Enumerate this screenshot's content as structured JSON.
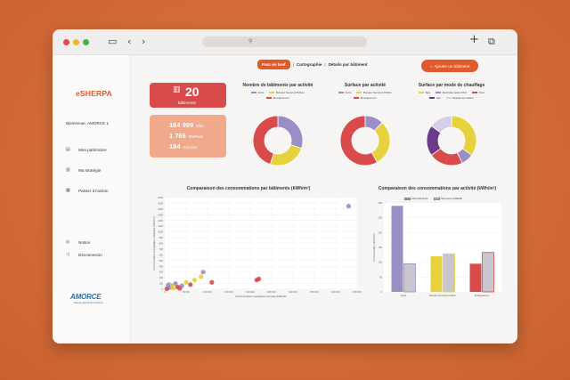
{
  "colors": {
    "accent": "#e05a2c",
    "red": "#d94a4a",
    "purple": "#9b8ec4",
    "yellow": "#e6d23c",
    "darkpurple": "#6b3a8a",
    "bar_grey": "#c9c6cf"
  },
  "sidebar": {
    "logo": "eSHERPA",
    "welcome": "Bienvenue, AMORCE 1",
    "items": [
      {
        "label": "Mon patrimoine",
        "icon": "list-icon"
      },
      {
        "label": "Ma stratégie",
        "icon": "document-icon"
      },
      {
        "label": "Passer à l'action",
        "icon": "calendar-icon"
      }
    ],
    "footer": [
      {
        "label": "Notice",
        "icon": "globe-icon"
      },
      {
        "label": "Déconnexion",
        "icon": "logout-icon"
      }
    ],
    "brand": "AMORCE",
    "brand_sub": "Réseau national des territoires"
  },
  "tabs": [
    {
      "label": "Parc en bref",
      "active": true
    },
    {
      "label": "Cartographie",
      "active": false
    },
    {
      "label": "Détails par bâtiment",
      "active": false
    }
  ],
  "add_button": "Ajouter un bâtiment",
  "summary": {
    "count": "20",
    "count_label": "bâtiments",
    "rows": [
      {
        "value": "164 999",
        "unit": "€/an"
      },
      {
        "value": "1 766",
        "unit": "MWh/an"
      },
      {
        "value": "184",
        "unit": "tCO₂/an"
      }
    ]
  },
  "donuts": [
    {
      "title": "Nombre de bâtiments par activité",
      "legend": [
        {
          "label": "Autre",
          "color": "#9b8ec4"
        },
        {
          "label": "Bureaux Services Publics",
          "color": "#e6d23c"
        },
        {
          "label": "Enseignement",
          "color": "#d94a4a"
        }
      ],
      "values": [
        30,
        25,
        45
      ]
    },
    {
      "title": "Surface par activité",
      "legend": [
        {
          "label": "Autre",
          "color": "#9b8ec4"
        },
        {
          "label": "Bureaux Services Publics",
          "color": "#e6d23c"
        },
        {
          "label": "Enseignement",
          "color": "#d94a4a"
        }
      ],
      "values": [
        12,
        30,
        58
      ]
    },
    {
      "title": "Surface par mode de chauffage",
      "legend": [
        {
          "label": "Bois",
          "color": "#e6d23c"
        },
        {
          "label": "Electricité (autre PAC)",
          "color": "#9b8ec4"
        },
        {
          "label": "Fioul",
          "color": "#d94a4a"
        },
        {
          "label": "Gaz",
          "color": "#6b3a8a"
        },
        {
          "label": "Réseau de chaleur",
          "color": "#d6cde8"
        }
      ],
      "values": [
        35,
        8,
        22,
        20,
        15
      ]
    }
  ],
  "chart_data": [
    {
      "type": "scatter",
      "title": "Comparaison des consommations par bâtiments (kWh/m²)",
      "xlabel": "Consommation énergétique annuelle (kWh/an)",
      "ylabel": "Consommation énergétique surfacique (kWh/m²)",
      "xlim": [
        0,
        450000
      ],
      "ylim": [
        0,
        1600
      ],
      "x_ticks": [
        "0",
        "50 000",
        "100 000",
        "150 000",
        "200 000",
        "250 000",
        "300 000",
        "350 000",
        "400 000",
        "450 000"
      ],
      "y_ticks": [
        "0",
        "100",
        "200",
        "300",
        "400",
        "500",
        "600",
        "700",
        "800",
        "900",
        "1000",
        "1100",
        "1200",
        "1300",
        "1400",
        "1500",
        "1600"
      ],
      "points": [
        {
          "x": 430000,
          "y": 1450,
          "color": "#9b8ec4"
        },
        {
          "x": 220000,
          "y": 180,
          "color": "#d94a4a"
        },
        {
          "x": 215000,
          "y": 160,
          "color": "#d94a4a"
        },
        {
          "x": 90000,
          "y": 300,
          "color": "#9b8ec4"
        },
        {
          "x": 85000,
          "y": 220,
          "color": "#e6d23c"
        },
        {
          "x": 70000,
          "y": 160,
          "color": "#e6d23c"
        },
        {
          "x": 110000,
          "y": 120,
          "color": "#d94a4a"
        },
        {
          "x": 60000,
          "y": 80,
          "color": "#d94a4a"
        },
        {
          "x": 50000,
          "y": 120,
          "color": "#e6d23c"
        },
        {
          "x": 40000,
          "y": 60,
          "color": "#9b8ec4"
        },
        {
          "x": 30000,
          "y": 40,
          "color": "#d94a4a"
        },
        {
          "x": 25000,
          "y": 100,
          "color": "#9b8ec4"
        },
        {
          "x": 20000,
          "y": 20,
          "color": "#e6d23c"
        },
        {
          "x": 15000,
          "y": 60,
          "color": "#d94a4a"
        },
        {
          "x": 10000,
          "y": 90,
          "color": "#e6d23c"
        },
        {
          "x": 12000,
          "y": 30,
          "color": "#9b8ec4"
        },
        {
          "x": 5000,
          "y": 10,
          "color": "#d94a4a"
        },
        {
          "x": 18000,
          "y": 50,
          "color": "#e6d23c"
        },
        {
          "x": 8000,
          "y": 70,
          "color": "#9b8ec4"
        },
        {
          "x": 35000,
          "y": 15,
          "color": "#d94a4a"
        }
      ]
    },
    {
      "type": "bar",
      "title": "Comparaison des consommations par activité (kWh/m²)",
      "ylabel": "Consommation (kWh/m²)",
      "categories": [
        "Autre",
        "Bureaux Services Publics",
        "Enseignement"
      ],
      "ylim": [
        0,
        300
      ],
      "y_ticks": [
        "0",
        "50",
        "100",
        "150",
        "200",
        "250",
        "300"
      ],
      "series": [
        {
          "name": "Mes bâtiments",
          "values": [
            290,
            120,
            95
          ],
          "colors": [
            "#9b8ec4",
            "#e6d23c",
            "#d94a4a"
          ]
        },
        {
          "name": "Moyennes ADEME",
          "values": [
            95,
            128,
            133
          ],
          "colors": [
            "#c9c6cf",
            "#c9c6cf",
            "#c9c6cf"
          ],
          "borders": [
            "#9b8ec4",
            "#e6d23c",
            "#d94a4a"
          ]
        }
      ]
    }
  ]
}
